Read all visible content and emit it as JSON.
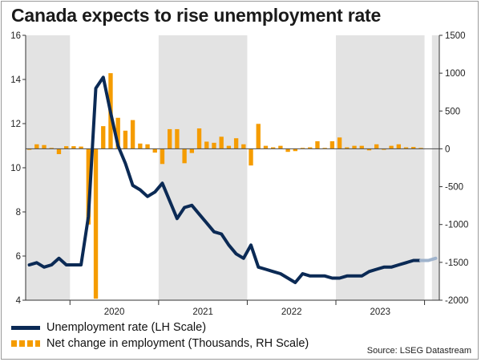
{
  "title": "Canada expects to rise unemployment rate",
  "source": "Source: LSEG Datastream",
  "legend": {
    "line_label": "Unemployment rate (LH Scale)",
    "bar_label": "Net change in employment (Thousands, RH Scale)"
  },
  "colors": {
    "line": "#0b2a55",
    "line_forecast": "#9fb3cc",
    "bars": "#f59c00",
    "shade": "#e3e3e3"
  },
  "chart_data": {
    "type": "bar+line",
    "x_axis": {
      "type": "date",
      "range": [
        "2019-07",
        "2024-03"
      ],
      "tick_labels": [
        "2020",
        "2021",
        "2022",
        "2023"
      ],
      "tick_dates": [
        "2020-01",
        "2021-01",
        "2022-01",
        "2023-01"
      ],
      "shaded_years": [
        "2019",
        "2021",
        "2023"
      ]
    },
    "y_left": {
      "range": [
        4,
        16
      ],
      "ticks": [
        4,
        6,
        8,
        10,
        12,
        14,
        16
      ]
    },
    "y_right": {
      "range": [
        -2000,
        1500
      ],
      "ticks": [
        -2000,
        -1500,
        -1000,
        -500,
        0,
        500,
        1000,
        1500
      ]
    },
    "legend_position": "bottom-left",
    "grid": false,
    "series": [
      {
        "name": "Unemployment rate (LH Scale)",
        "axis": "left",
        "kind": "line",
        "points": [
          [
            "2019-07",
            5.6
          ],
          [
            "2019-08",
            5.7
          ],
          [
            "2019-09",
            5.5
          ],
          [
            "2019-10",
            5.6
          ],
          [
            "2019-11",
            5.9
          ],
          [
            "2019-12",
            5.6
          ],
          [
            "2020-01",
            5.6
          ],
          [
            "2020-02",
            5.6
          ],
          [
            "2020-03",
            7.8
          ],
          [
            "2020-04",
            13.6
          ],
          [
            "2020-05",
            14.1
          ],
          [
            "2020-06",
            12.5
          ],
          [
            "2020-07",
            11.0
          ],
          [
            "2020-08",
            10.2
          ],
          [
            "2020-09",
            9.2
          ],
          [
            "2020-10",
            9.0
          ],
          [
            "2020-11",
            8.7
          ],
          [
            "2020-12",
            8.9
          ],
          [
            "2021-01",
            9.3
          ],
          [
            "2021-02",
            8.5
          ],
          [
            "2021-03",
            7.7
          ],
          [
            "2021-04",
            8.2
          ],
          [
            "2021-05",
            8.3
          ],
          [
            "2021-06",
            7.9
          ],
          [
            "2021-07",
            7.5
          ],
          [
            "2021-08",
            7.1
          ],
          [
            "2021-09",
            7.0
          ],
          [
            "2021-10",
            6.5
          ],
          [
            "2021-11",
            6.1
          ],
          [
            "2021-12",
            5.9
          ],
          [
            "2022-01",
            6.5
          ],
          [
            "2022-02",
            5.5
          ],
          [
            "2022-03",
            5.4
          ],
          [
            "2022-04",
            5.3
          ],
          [
            "2022-05",
            5.2
          ],
          [
            "2022-06",
            5.0
          ],
          [
            "2022-07",
            4.8
          ],
          [
            "2022-08",
            5.2
          ],
          [
            "2022-09",
            5.1
          ],
          [
            "2022-10",
            5.1
          ],
          [
            "2022-11",
            5.1
          ],
          [
            "2022-12",
            5.0
          ],
          [
            "2023-01",
            5.0
          ],
          [
            "2023-02",
            5.1
          ],
          [
            "2023-03",
            5.1
          ],
          [
            "2023-04",
            5.1
          ],
          [
            "2023-05",
            5.3
          ],
          [
            "2023-06",
            5.4
          ],
          [
            "2023-07",
            5.5
          ],
          [
            "2023-08",
            5.5
          ],
          [
            "2023-09",
            5.6
          ],
          [
            "2023-10",
            5.7
          ],
          [
            "2023-11",
            5.8
          ],
          [
            "2023-12",
            5.8
          ]
        ],
        "forecast": [
          [
            "2023-12",
            5.8
          ],
          [
            "2024-01",
            5.8
          ],
          [
            "2024-02",
            5.9
          ]
        ]
      },
      {
        "name": "Net change in employment (Thousands, RH Scale)",
        "axis": "right",
        "kind": "bar",
        "points": [
          [
            "2019-07",
            -5
          ],
          [
            "2019-08",
            60
          ],
          [
            "2019-09",
            50
          ],
          [
            "2019-10",
            0
          ],
          [
            "2019-11",
            -70
          ],
          [
            "2019-12",
            35
          ],
          [
            "2020-01",
            35
          ],
          [
            "2020-02",
            30
          ],
          [
            "2020-03",
            -1000
          ],
          [
            "2020-04",
            -1980
          ],
          [
            "2020-05",
            300
          ],
          [
            "2020-06",
            1000
          ],
          [
            "2020-07",
            410
          ],
          [
            "2020-08",
            240
          ],
          [
            "2020-09",
            380
          ],
          [
            "2020-10",
            70
          ],
          [
            "2020-11",
            60
          ],
          [
            "2020-12",
            -50
          ],
          [
            "2021-01",
            -200
          ],
          [
            "2021-02",
            260
          ],
          [
            "2021-03",
            260
          ],
          [
            "2021-04",
            -190
          ],
          [
            "2021-05",
            -55
          ],
          [
            "2021-06",
            270
          ],
          [
            "2021-07",
            95
          ],
          [
            "2021-08",
            80
          ],
          [
            "2021-09",
            160
          ],
          [
            "2021-10",
            40
          ],
          [
            "2021-11",
            140
          ],
          [
            "2021-12",
            60
          ],
          [
            "2022-01",
            -220
          ],
          [
            "2022-02",
            330
          ],
          [
            "2022-03",
            40
          ],
          [
            "2022-04",
            20
          ],
          [
            "2022-05",
            40
          ],
          [
            "2022-06",
            -40
          ],
          [
            "2022-07",
            -30
          ],
          [
            "2022-08",
            0
          ],
          [
            "2022-09",
            20
          ],
          [
            "2022-10",
            100
          ],
          [
            "2022-11",
            10
          ],
          [
            "2022-12",
            100
          ],
          [
            "2023-01",
            150
          ],
          [
            "2023-02",
            20
          ],
          [
            "2023-03",
            40
          ],
          [
            "2023-04",
            40
          ],
          [
            "2023-05",
            -20
          ],
          [
            "2023-06",
            60
          ],
          [
            "2023-07",
            -5
          ],
          [
            "2023-08",
            40
          ],
          [
            "2023-09",
            60
          ],
          [
            "2023-10",
            20
          ],
          [
            "2023-11",
            25
          ],
          [
            "2023-12",
            0
          ]
        ]
      }
    ]
  }
}
